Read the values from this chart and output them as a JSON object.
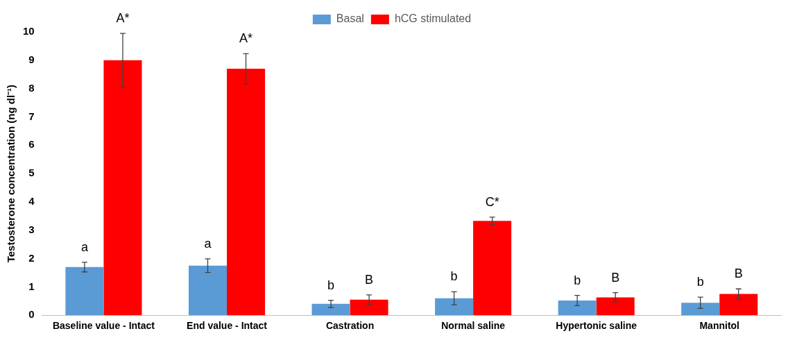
{
  "chart_data": {
    "type": "bar",
    "ylabel": "Testosterone concentration (ng dl⁻¹)",
    "categories": [
      "Baseline value - Intact",
      "End value - Intact",
      "Castration",
      "Normal saline",
      "Hypertonic saline",
      "Mannitol"
    ],
    "series": [
      {
        "name": "Basal",
        "color": "#5b9bd5",
        "values": [
          1.7,
          1.75,
          0.4,
          0.6,
          0.52,
          0.44
        ],
        "errors": [
          0.17,
          0.24,
          0.13,
          0.23,
          0.18,
          0.2
        ]
      },
      {
        "name": "hCG stimulated",
        "color": "#ff0000",
        "values": [
          9.0,
          8.7,
          0.55,
          3.33,
          0.63,
          0.75
        ],
        "errors": [
          0.95,
          0.53,
          0.17,
          0.13,
          0.17,
          0.18
        ]
      }
    ],
    "ylim": [
      0,
      10
    ],
    "yticks": [
      0,
      1,
      2,
      3,
      4,
      5,
      6,
      7,
      8,
      9,
      10
    ],
    "grid": false,
    "legend": "top",
    "annotations": [
      {
        "text": "a",
        "x": "Baseline value - Intact",
        "y": 1.7
      },
      {
        "text": "A*",
        "x": "Baseline value - Intact",
        "y": 9.0
      },
      {
        "text": "a",
        "x": "End value - Intact",
        "y": 1.75
      },
      {
        "text": "A*",
        "x": "End value - Intact",
        "y": 8.7
      },
      {
        "text": "b",
        "x": "Castration",
        "y": 0.4
      },
      {
        "text": "B",
        "x": "Castration",
        "y": 0.55
      },
      {
        "text": "b",
        "x": "Normal saline",
        "y": 0.6
      },
      {
        "text": "C*",
        "x": "Normal saline",
        "y": 3.33
      },
      {
        "text": "b",
        "x": "Hypertonic saline",
        "y": 0.52
      },
      {
        "text": "B",
        "x": "Hypertonic saline",
        "y": 0.63
      },
      {
        "text": "b",
        "x": "Mannitol",
        "y": 0.44
      },
      {
        "text": "B",
        "x": "Mannitol",
        "y": 0.75
      }
    ]
  }
}
